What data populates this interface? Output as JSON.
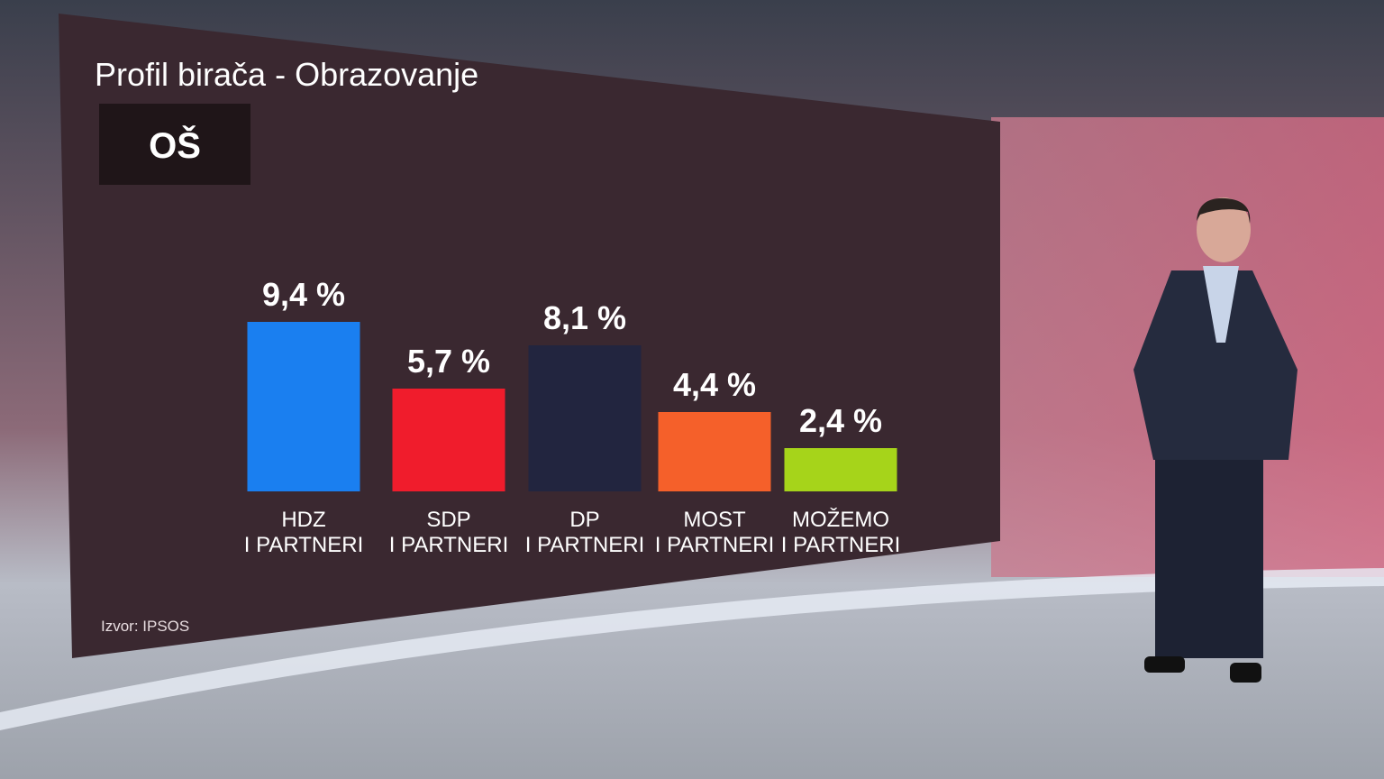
{
  "chart_data": {
    "type": "bar",
    "title": "Profil birača - Obrazovanje",
    "subtitle": "OŠ",
    "source": "Izvor: IPSOS",
    "categories": [
      "HDZ\nI PARTNERI",
      "SDP\nI PARTNERI",
      "DP\nI PARTNERI",
      "MOST\nI PARTNERI",
      "MOŽEMO\nI PARTNERI"
    ],
    "values": [
      9.4,
      5.7,
      8.1,
      4.4,
      2.4
    ],
    "value_labels": [
      "9,4 %",
      "5,7 %",
      "8,1 %",
      "4,4 %",
      "2,4 %"
    ],
    "colors": [
      "#1a7ff0",
      "#f01c2c",
      "#22253f",
      "#f5602a",
      "#a6d41a"
    ]
  }
}
